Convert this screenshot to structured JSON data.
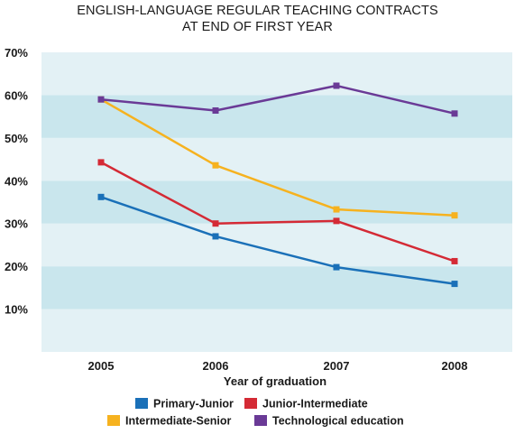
{
  "chart_data": {
    "type": "line",
    "title_lines": [
      "ENGLISH-LANGUAGE REGULAR TEACHING CONTRACTS",
      "AT END OF FIRST YEAR"
    ],
    "xlabel": "Year of graduation",
    "ylabel": "",
    "categories": [
      "2005",
      "2006",
      "2007",
      "2008"
    ],
    "ylim": [
      0,
      70
    ],
    "yticks": [
      {
        "value": 10,
        "label": "10%"
      },
      {
        "value": 20,
        "label": "20%"
      },
      {
        "value": 30,
        "label": "30%"
      },
      {
        "value": 40,
        "label": "40%"
      },
      {
        "value": 50,
        "label": "50%"
      },
      {
        "value": 60,
        "label": "60%"
      },
      {
        "value": 70,
        "label": "70%"
      }
    ],
    "series": [
      {
        "name": "Primary-Junior",
        "color": "#1a70b8",
        "values": [
          36.2,
          27.0,
          19.8,
          15.9
        ]
      },
      {
        "name": "Junior-Intermediate",
        "color": "#d42a35",
        "values": [
          44.3,
          30.0,
          30.6,
          21.2
        ]
      },
      {
        "name": "Intermediate-Senior",
        "color": "#f6b21f",
        "values": [
          59.0,
          43.6,
          33.3,
          31.9
        ]
      },
      {
        "name": "Technological education",
        "color": "#6a3a96",
        "values": [
          59.0,
          56.4,
          62.2,
          55.7
        ]
      }
    ],
    "legend_position": "bottom",
    "grid": "alternating horizontal bands",
    "band_colors": {
      "light": "#e3f1f5",
      "dark": "#c9e6ed"
    }
  }
}
